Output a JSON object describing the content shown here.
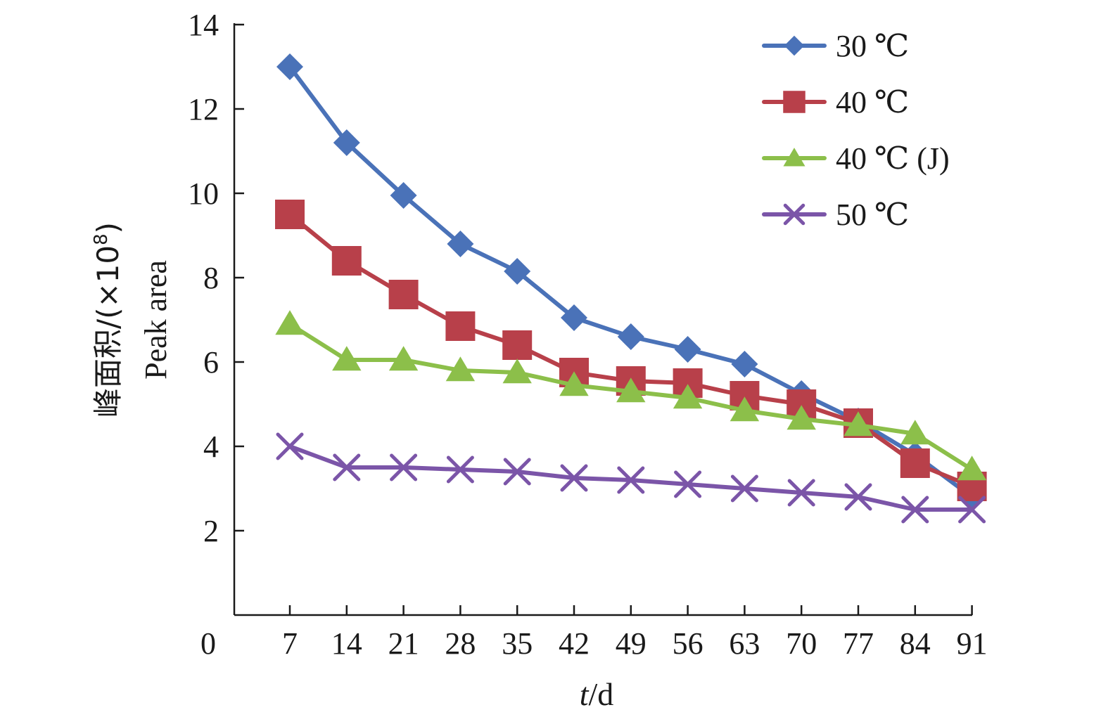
{
  "chart_data": {
    "type": "line",
    "xlabel_italic": "t",
    "xlabel_rest": "/d",
    "ylabel_cn": "峰面积/(×10",
    "ylabel_sup": "8",
    "ylabel_close": ")",
    "ylabel_en": "Peak area",
    "x_origin_label": "0",
    "x": [
      7,
      14,
      21,
      28,
      35,
      42,
      49,
      56,
      63,
      70,
      77,
      84,
      91
    ],
    "yticks": [
      2,
      4,
      6,
      8,
      10,
      12,
      14
    ],
    "ylim": [
      0,
      14
    ],
    "grid": false,
    "legend_position": "top-right",
    "series": [
      {
        "name": "30 ℃",
        "color": "#4a72b8",
        "marker": "diamond",
        "values": [
          13.0,
          11.2,
          9.95,
          8.8,
          8.15,
          7.05,
          6.6,
          6.3,
          5.95,
          5.25,
          4.6,
          3.8,
          2.8
        ]
      },
      {
        "name": "40 ℃",
        "color": "#b8404a",
        "marker": "square",
        "values": [
          9.5,
          8.4,
          7.6,
          6.85,
          6.4,
          5.75,
          5.55,
          5.5,
          5.2,
          5.0,
          4.55,
          3.6,
          3.05
        ]
      },
      {
        "name": "40 ℃ (J)",
        "color": "#8cbf4a",
        "marker": "triangle",
        "values": [
          6.9,
          6.05,
          6.05,
          5.8,
          5.75,
          5.45,
          5.3,
          5.15,
          4.85,
          4.65,
          4.5,
          4.3,
          3.45
        ]
      },
      {
        "name": "50 ℃",
        "color": "#7b55a8",
        "marker": "x",
        "values": [
          4.0,
          3.5,
          3.5,
          3.45,
          3.4,
          3.25,
          3.2,
          3.1,
          3.0,
          2.9,
          2.8,
          2.5,
          2.5
        ]
      }
    ]
  }
}
